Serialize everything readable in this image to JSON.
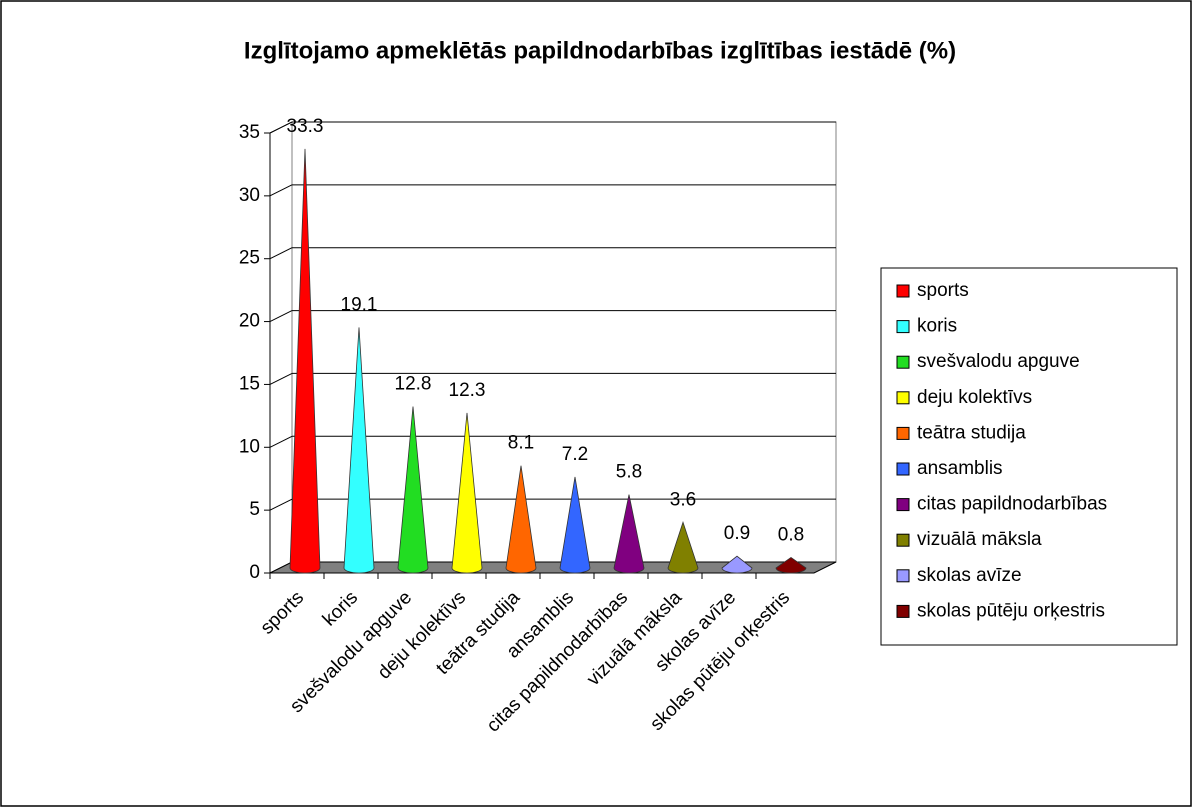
{
  "chart_data": {
    "type": "cone",
    "title": "Izglītojamo apmeklētās papildnodarbības izglītības iestādē (%)",
    "categories": [
      "sports",
      "koris",
      "svešvalodu apguve",
      "deju kolektīvs",
      "teātra studija",
      "ansamblis",
      "citas papildnodarbības",
      "vizuālā māksla",
      "skolas avīze",
      "skolas pūtēju orķestris"
    ],
    "values": [
      33.3,
      19.1,
      12.8,
      12.3,
      8.1,
      7.2,
      5.8,
      3.6,
      0.9,
      0.8
    ],
    "colors": [
      "#ff0000",
      "#33ffff",
      "#22dd22",
      "#ffff00",
      "#ff6600",
      "#3366ff",
      "#800080",
      "#808000",
      "#9999ff",
      "#800000"
    ],
    "ylim": [
      0,
      35
    ],
    "yticks": [
      0,
      5,
      10,
      15,
      20,
      25,
      30,
      35
    ],
    "grid": true,
    "legend": "right"
  }
}
